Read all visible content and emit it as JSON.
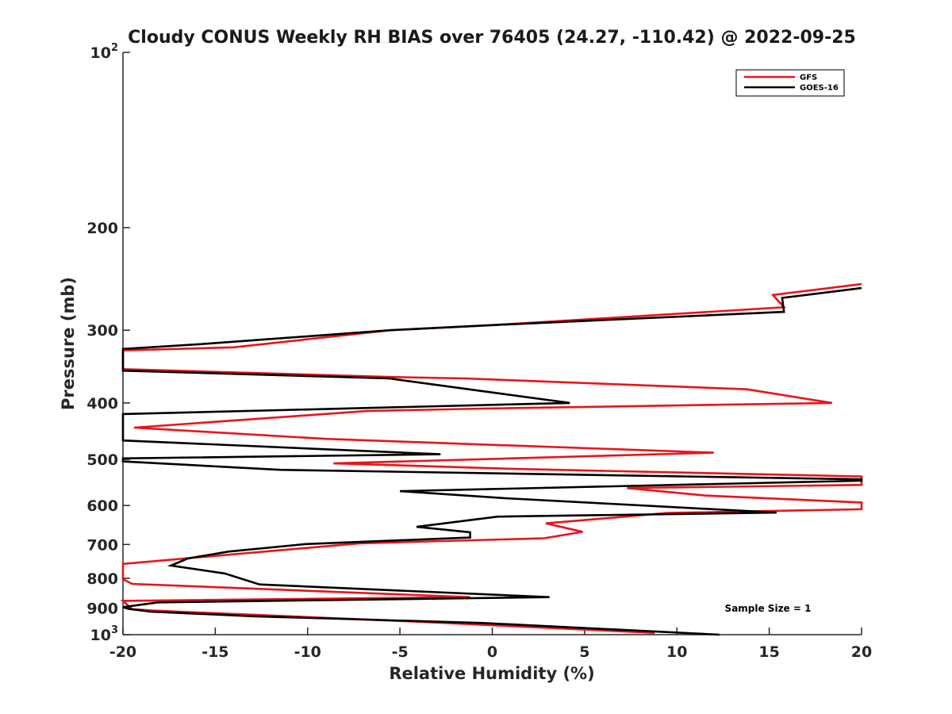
{
  "chart_data": {
    "type": "line",
    "title": "Cloudy CONUS Weekly RH BIAS over 76405 (24.27, -110.42) @ 2022-09-25",
    "xlabel": "Relative Humidity (%)",
    "ylabel": "Pressure (mb)",
    "xlim": [
      -20,
      20
    ],
    "ylim": [
      100,
      1000
    ],
    "y_scale": "log",
    "y_reversed": true,
    "x_ticks": [
      "-20",
      "-15",
      "-10",
      "-5",
      "0",
      "5",
      "10",
      "15",
      "20"
    ],
    "y_ticks": [
      {
        "value": 100,
        "base": "10",
        "exp": "2"
      },
      {
        "value": 200,
        "label": "200"
      },
      {
        "value": 300,
        "label": "300"
      },
      {
        "value": 400,
        "label": "400"
      },
      {
        "value": 500,
        "label": "500"
      },
      {
        "value": 600,
        "label": "600"
      },
      {
        "value": 700,
        "label": "700"
      },
      {
        "value": 800,
        "label": "800"
      },
      {
        "value": 900,
        "label": "900"
      },
      {
        "value": 1000,
        "base": "10",
        "exp": "3"
      }
    ],
    "legend_position": "top-right",
    "annotation": "Sample Size = 1",
    "series": [
      {
        "name": "GFS",
        "color": "#e8141b",
        "points": [
          [
            20,
            250
          ],
          [
            15.2,
            261
          ],
          [
            15.8,
            274
          ],
          [
            0,
            294
          ],
          [
            -5.5,
            300
          ],
          [
            -14,
            321
          ],
          [
            -20,
            325
          ],
          [
            -20,
            350
          ],
          [
            -5.5,
            361
          ],
          [
            -1.5,
            363
          ],
          [
            13.8,
            379
          ],
          [
            18.4,
            400
          ],
          [
            -0.5,
            409
          ],
          [
            -6.8,
            413
          ],
          [
            -19.4,
            441
          ],
          [
            -9,
            461
          ],
          [
            -5,
            466
          ],
          [
            12,
            487
          ],
          [
            -8.6,
            508
          ],
          [
            -5,
            512
          ],
          [
            1,
            519
          ],
          [
            20,
            535
          ],
          [
            20,
            553
          ],
          [
            7.3,
            560
          ],
          [
            11.6,
            577
          ],
          [
            20,
            593
          ],
          [
            20,
            609
          ],
          [
            9.5,
            618
          ],
          [
            2.9,
            644
          ],
          [
            4.9,
            666
          ],
          [
            2.8,
            683
          ],
          [
            -7.2,
            697
          ],
          [
            -20,
            756
          ],
          [
            -20,
            803
          ],
          [
            -19.5,
            818
          ],
          [
            -1.2,
            862
          ],
          [
            -20,
            875
          ],
          [
            -19.5,
            904
          ],
          [
            -18.4,
            909
          ],
          [
            -4.7,
            948
          ],
          [
            8.8,
            993
          ]
        ]
      },
      {
        "name": "GOES-16",
        "color": "#000000",
        "points": [
          [
            20,
            254
          ],
          [
            15.7,
            264
          ],
          [
            15.8,
            279
          ],
          [
            0,
            294
          ],
          [
            -5.5,
            300
          ],
          [
            -15.8,
            317
          ],
          [
            -20,
            323
          ],
          [
            -20,
            352
          ],
          [
            -5.6,
            363
          ],
          [
            -0.2,
            383
          ],
          [
            4.2,
            400
          ],
          [
            -20,
            418
          ],
          [
            -20,
            464
          ],
          [
            -2.8,
            490
          ],
          [
            -20,
            498
          ],
          [
            -20,
            504
          ],
          [
            -11.5,
            521
          ],
          [
            20,
            541
          ],
          [
            20,
            544
          ],
          [
            -5,
            567
          ],
          [
            0.7,
            583
          ],
          [
            15.4,
            617
          ],
          [
            0.3,
            627
          ],
          [
            -4.1,
            653
          ],
          [
            -1.2,
            667
          ],
          [
            -1.2,
            681
          ],
          [
            -10.1,
            699
          ],
          [
            -14.3,
            720
          ],
          [
            -16.5,
            740
          ],
          [
            -17.4,
            761
          ],
          [
            -14.5,
            785
          ],
          [
            -12.6,
            820
          ],
          [
            3.1,
            862
          ],
          [
            -18.1,
            880
          ],
          [
            -20,
            897
          ],
          [
            -19.7,
            903
          ],
          [
            -18.5,
            913
          ],
          [
            -12.8,
            930
          ],
          [
            -0.5,
            955
          ],
          [
            12.3,
            1000
          ]
        ]
      }
    ]
  }
}
